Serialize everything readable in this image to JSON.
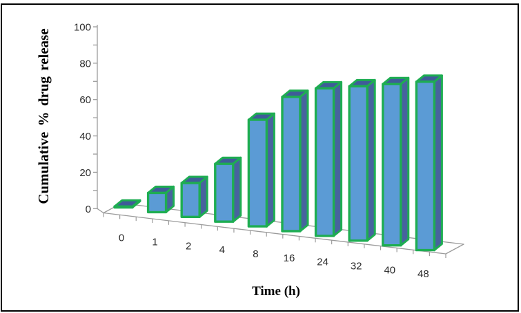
{
  "chart_data": {
    "type": "bar",
    "style": "3d-column",
    "title": "",
    "xlabel": "Time (h)",
    "ylabel": "Cumulative % drug release",
    "categories": [
      "0",
      "1",
      "2",
      "4",
      "8",
      "16",
      "24",
      "32",
      "40",
      "48"
    ],
    "values": [
      0.5,
      10,
      17,
      28,
      50,
      61,
      65,
      66,
      67,
      68
    ],
    "ylim": [
      0,
      100
    ],
    "y_ticks": [
      0,
      20,
      40,
      60,
      80,
      100
    ],
    "y_minor_step": 10,
    "grid": false,
    "legend": "none",
    "colors": {
      "bar_front": "#5B9BD5",
      "bar_side": "#47639E",
      "bar_top": "#3F5C99",
      "bar_outline": "#1EAD52",
      "axis": "#9B9B9B",
      "tick_label": "#2b2b2b",
      "frame_border": "#000000",
      "background": "#FFFFFF"
    }
  }
}
